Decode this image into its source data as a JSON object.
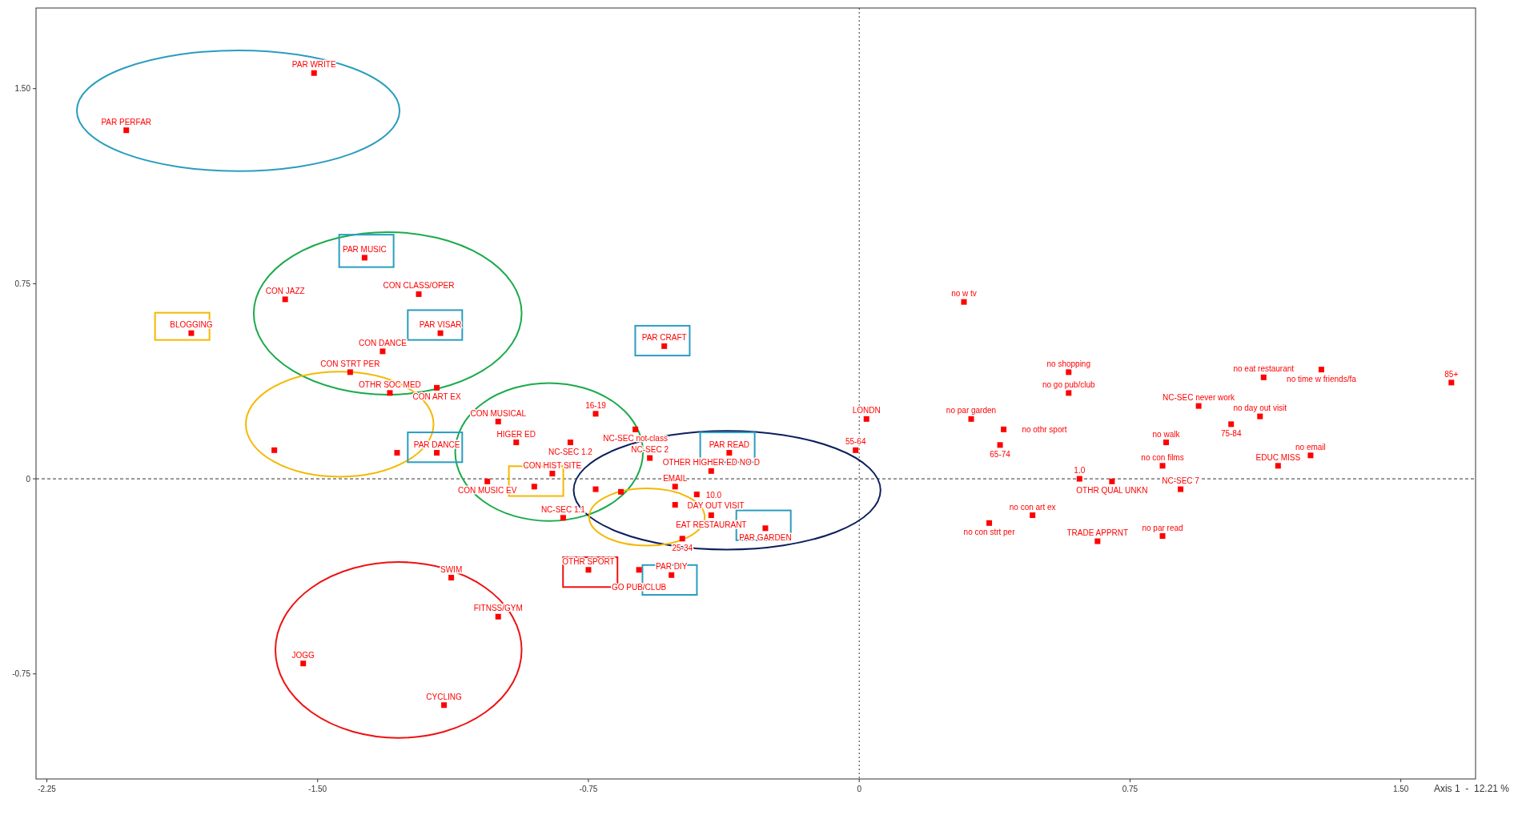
{
  "chart_data": {
    "type": "scatter",
    "xlabel": "Axis 1  -  12.21 %",
    "marker": "square",
    "xlim": [
      -2.28,
      1.707
    ],
    "ylim": [
      -1.154,
      1.81
    ],
    "xticks": [
      {
        "value": -2.25,
        "label": "-2.25"
      },
      {
        "value": -1.5,
        "label": "-1.50"
      },
      {
        "value": -0.75,
        "label": "-0.75"
      },
      0,
      {
        "value": 0.75,
        "label": "0.75"
      },
      {
        "value": 1.5,
        "label": "1.50"
      }
    ],
    "yticks": [
      {
        "value": 1.5,
        "label": "1.50"
      },
      {
        "value": 0.75,
        "label": "0.75"
      },
      0,
      {
        "value": -0.75,
        "label": "-0.75"
      }
    ],
    "ref_lines": [
      {
        "axis": "x",
        "value": 0,
        "color": "#333333",
        "line_style": "dotted"
      },
      {
        "axis": "y",
        "value": 0,
        "color": "#333333",
        "line_style": "dashed"
      }
    ],
    "series": [
      {
        "color": "#ff0000",
        "x": [
          -1.51,
          -2.03,
          -1.37,
          -1.59,
          -1.22,
          -1.85,
          -1.16,
          -0.54,
          -1.32,
          -1.41,
          -1.3,
          -1.17,
          -1.0,
          -1.62,
          -1.28,
          -1.17,
          -0.85,
          -1.03,
          -0.9,
          -0.73,
          -0.66,
          -0.51,
          -0.51,
          -0.41,
          -0.36,
          -0.26,
          -0.75,
          -0.61,
          -0.52,
          -1.13,
          -1.0,
          -1.54,
          -1.15,
          0.29,
          0.58,
          0.58,
          1.12,
          1.28,
          1.11,
          0.85,
          0.84,
          1.25,
          0.84,
          0.31,
          0.4,
          0.48,
          0.36
        ],
        "values": [
          1.56,
          1.34,
          0.85,
          0.69,
          0.71,
          0.56,
          0.56,
          0.51,
          0.49,
          0.41,
          0.33,
          0.35,
          0.22,
          0.11,
          0.1,
          0.1,
          0.02,
          -0.01,
          -0.03,
          -0.04,
          -0.05,
          -0.03,
          -0.1,
          -0.14,
          0.1,
          -0.19,
          -0.35,
          -0.35,
          -0.37,
          -0.38,
          -0.53,
          -0.71,
          -0.87,
          0.68,
          0.41,
          0.33,
          0.39,
          0.42,
          0.24,
          0.14,
          0.05,
          0.09,
          -0.22,
          0.23,
          0.19,
          -0.14,
          -0.17
        ]
      },
      {
        "color": "#ff0000",
        "x": [
          1.64,
          0.94,
          1.03,
          1.16,
          0.61,
          0.89,
          0.66,
          0.02,
          -0.01,
          0.39,
          -0.73,
          -0.62,
          -0.58,
          -0.8,
          -0.95,
          -0.41,
          -0.82,
          -0.45,
          -0.49,
          0.7
        ],
        "values": [
          0.37,
          0.28,
          0.21,
          0.05,
          0.0,
          -0.04,
          -0.24,
          0.23,
          0.11,
          0.13,
          0.25,
          0.19,
          0.08,
          0.14,
          0.14,
          0.03,
          -0.15,
          -0.06,
          -0.23,
          -0.01
        ]
      }
    ],
    "annotations": [
      {
        "text": "PAR WRITE",
        "x": -1.51,
        "y": 1.56
      },
      {
        "text": "PAR PERFAR",
        "x": -2.03,
        "y": 1.34
      },
      {
        "text": "PAR MUSIC",
        "x": -1.37,
        "y": 0.85
      },
      {
        "text": "CON JAZZ",
        "x": -1.59,
        "y": 0.69
      },
      {
        "text": "CON CLASS/OPER",
        "x": -1.22,
        "y": 0.71
      },
      {
        "text": "BLOGGING",
        "x": -1.85,
        "y": 0.56
      },
      {
        "text": "PAR VISAR",
        "x": -1.16,
        "y": 0.56
      },
      {
        "text": "PAR CRAFT",
        "x": -0.54,
        "y": 0.51
      },
      {
        "text": "CON DANCE",
        "x": -1.32,
        "y": 0.49
      },
      {
        "text": "CON STRT PER",
        "x": -1.41,
        "y": 0.41
      },
      {
        "text": "OTHR SOC MED",
        "x": -1.3,
        "y": 0.33
      },
      {
        "text": "CON ART EX",
        "x": -1.17,
        "y": 0.35
      },
      {
        "text": "CON MUSICAL",
        "x": -1.0,
        "y": 0.22
      },
      {
        "text": "PAR DANCE",
        "x": -1.17,
        "y": 0.1
      },
      {
        "text": "CON HIST SITE",
        "x": -0.85,
        "y": 0.02
      },
      {
        "text": "CON MUSIC EV",
        "x": -1.03,
        "y": -0.01
      },
      {
        "text": "EMAIL",
        "x": -0.51,
        "y": -0.03
      },
      {
        "text": "DAY OUT VISIT",
        "x": -0.51,
        "y": -0.1
      },
      {
        "text": "EAT RESTAURANT",
        "x": -0.41,
        "y": -0.14
      },
      {
        "text": "PAR READ",
        "x": -0.36,
        "y": 0.1
      },
      {
        "text": "PAR GARDEN",
        "x": -0.26,
        "y": -0.19
      },
      {
        "text": "OTHR SPORT",
        "x": -0.75,
        "y": -0.35
      },
      {
        "text": "GO PUB/CLUB",
        "x": -0.61,
        "y": -0.35
      },
      {
        "text": "PAR DIY",
        "x": -0.52,
        "y": -0.37
      },
      {
        "text": "SWIM",
        "x": -1.13,
        "y": -0.38
      },
      {
        "text": "FITNSS/GYM",
        "x": -1.0,
        "y": -0.53
      },
      {
        "text": "JOGG",
        "x": -1.54,
        "y": -0.71
      },
      {
        "text": "CYCLING",
        "x": -1.15,
        "y": -0.87
      },
      {
        "text": "no w tv",
        "x": 0.29,
        "y": 0.68
      },
      {
        "text": "no shopping",
        "x": 0.58,
        "y": 0.41
      },
      {
        "text": "no go pub/club",
        "x": 0.58,
        "y": 0.33
      },
      {
        "text": "no eat restaurant",
        "x": 1.12,
        "y": 0.39
      },
      {
        "text": "no time w friends/fa",
        "x": 1.28,
        "y": 0.42
      },
      {
        "text": "no day out visit",
        "x": 1.11,
        "y": 0.24
      },
      {
        "text": "no walk",
        "x": 0.85,
        "y": 0.14
      },
      {
        "text": "no con films",
        "x": 0.84,
        "y": 0.05
      },
      {
        "text": "no email",
        "x": 1.25,
        "y": 0.09
      },
      {
        "text": "no par read",
        "x": 0.84,
        "y": -0.22
      },
      {
        "text": "no par garden",
        "x": 0.31,
        "y": 0.23
      },
      {
        "text": "no othr sport",
        "x": 0.4,
        "y": 0.19
      },
      {
        "text": "no con art ex",
        "x": 0.48,
        "y": -0.14
      },
      {
        "text": "no con strt per",
        "x": 0.36,
        "y": -0.17
      },
      {
        "text": "85+",
        "x": 1.64,
        "y": 0.37
      },
      {
        "text": "NC-SEC never work",
        "x": 0.94,
        "y": 0.28
      },
      {
        "text": "75-84",
        "x": 1.03,
        "y": 0.21
      },
      {
        "text": "EDUC MISS",
        "x": 1.16,
        "y": 0.05
      },
      {
        "text": "1.0",
        "x": 0.61,
        "y": 0.0
      },
      {
        "text": "NC-SEC 7",
        "x": 0.89,
        "y": -0.04
      },
      {
        "text": "TRADE APPRNT",
        "x": 0.66,
        "y": -0.24
      },
      {
        "text": "LONDN",
        "x": 0.02,
        "y": 0.23
      },
      {
        "text": "55-64",
        "x": -0.01,
        "y": 0.11
      },
      {
        "text": "65-74",
        "x": 0.39,
        "y": 0.13
      },
      {
        "text": "16-19",
        "x": -0.73,
        "y": 0.25
      },
      {
        "text": "NC-SEC not class",
        "x": -0.62,
        "y": 0.19
      },
      {
        "text": "NC-SEC 2",
        "x": -0.58,
        "y": 0.08
      },
      {
        "text": "NC-SEC 1.2",
        "x": -0.8,
        "y": 0.14
      },
      {
        "text": "HIGER ED",
        "x": -0.95,
        "y": 0.14
      },
      {
        "text": "OTHER HIGHER ED NO D",
        "x": -0.41,
        "y": 0.03
      },
      {
        "text": "NC-SEC 1.1",
        "x": -0.82,
        "y": -0.15
      },
      {
        "text": "10.0",
        "x": -0.45,
        "y": -0.06
      },
      {
        "text": "25-34",
        "x": -0.49,
        "y": -0.23
      },
      {
        "text": "OTHR QUAL UNKN",
        "x": 0.7,
        "y": -0.01
      }
    ]
  }
}
